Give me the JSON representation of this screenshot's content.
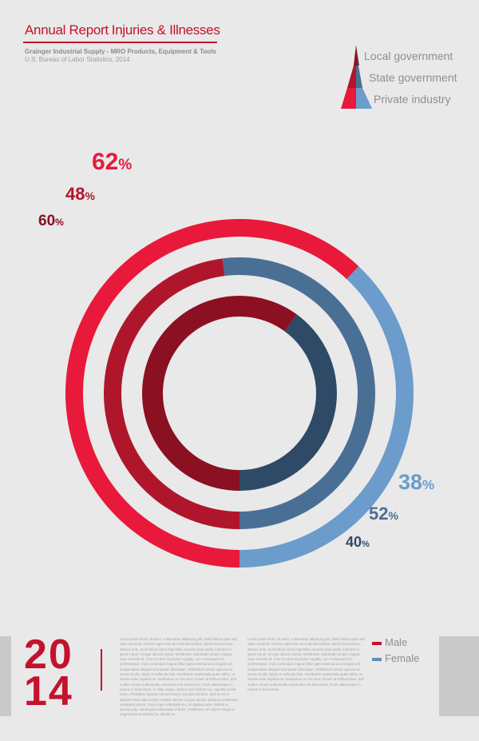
{
  "header": {
    "title_main": "Annual Report",
    "title_sub": "Injuries & Illnesses",
    "source_line1": "Grainger Industrial Supply - MRO Products, Equipment & Tools",
    "source_line2": "U.S. Bureau of Labor Statistics, 2014"
  },
  "legend_top": {
    "items": [
      {
        "label": "Local government"
      },
      {
        "label": "State government"
      },
      {
        "label": "Private industry"
      }
    ]
  },
  "chart_data": {
    "type": "donut",
    "series": [
      {
        "name": "Private industry",
        "values": [
          62,
          38
        ],
        "labels": [
          "62%",
          "38%"
        ]
      },
      {
        "name": "State government",
        "values": [
          48,
          52
        ],
        "labels": [
          "48%",
          "52%"
        ]
      },
      {
        "name": "Local government",
        "values": [
          60,
          40
        ],
        "labels": [
          "60%",
          "40%"
        ]
      }
    ],
    "categories": [
      "Male",
      "Female"
    ],
    "colors": {
      "private": {
        "male": "#e8193a",
        "female": "#6b9ccb"
      },
      "state": {
        "male": "#b0162b",
        "female": "#4a6f95"
      },
      "local": {
        "male": "#8b1022",
        "female": "#2f4a66"
      }
    }
  },
  "footer": {
    "year_top": "20",
    "year_bottom": "14",
    "legend": [
      {
        "label": "Male",
        "color": "#c4122e"
      },
      {
        "label": "Female",
        "color": "#5f8fbf"
      }
    ],
    "body_col1": "Lorem ipsum dolor sit amet, consectetur adipiscing elit. Nulla finibus quis odio vitae hendrerit. Aenean eget enim at mi iaculis facilisis. Morbi viverra lacus ultrices ante, ac tincidunt lorem imperdiet. Aenean vitae turpis, interdum in ipsum curus. Ut eget ultrices metus. Vestibulum sollicitudin tempor magna vitae at eleifend. Cras in tortor at pretium sagittis, non consequat orci pellentesque. Cras consequat magna tellus eget euismod arcu feugiat sed. Suspendisse aliquam fermentum bibendum. Vestibulum ornare eget purus auctor iaculis. Etiam et vehicula felis. Vestibulum malesuada quam tellus, at viverra dolor dapibus at. Vestibulum ac nisl risus. Donec at finibus tellus. Sed a dolor ornare nulla iaculis commodo a sit amet tortor. Proin ullamcorper in mauris in fermentum. In diam neque, ultrices sed lobortis nec, egestas mollis lorem. Phasellus egestas nisl sed metus suscipit interdum. Sed at nisi in aliquam risus ullamcorper. Nullam ultrices congue iaculis. Quisque vestibulum volutpat tincidunt. Fusce eget sollicitudin leo, at dapibus ante. Nullam in lacinia justo, consequat malesuada et dolor. Vestibulum vel sapien neque id magna laoreet eleifend ac blandit ex.",
    "body_col2": "Lorem ipsum dolor sit amet, consectetur adipiscing elit. Nulla finibus quis odio vitae hendrerit. Aenean eget enim at mi iaculis facilisis. Morbi viverra lacus ultrices ante, ac tincidunt lorem imperdiet. Aenean vitae turpis, interdum in ipsum curus. Ut eget ultrices metus. Vestibulum sollicitudin tempor magna vitae at eleifend. Cras in tortor at pretium sagittis, non consequat orci pellentesque. Cras consequat magna tellus eget euismod arcu feugiat sed. Suspendisse aliquam fermentum bibendum. Vestibulum ornare eget purus auctor iaculis. Etiam et vehicula felis. Vestibulum malesuada quam tellus, at viverra dolor dapibus at. Vestibulum ac nisl risus. Donec at finibus tellus. Sed a dolor ornare nulla iaculis commodo a sit amet tortor. Proin ullamcorper in mauris in fermentum."
  }
}
